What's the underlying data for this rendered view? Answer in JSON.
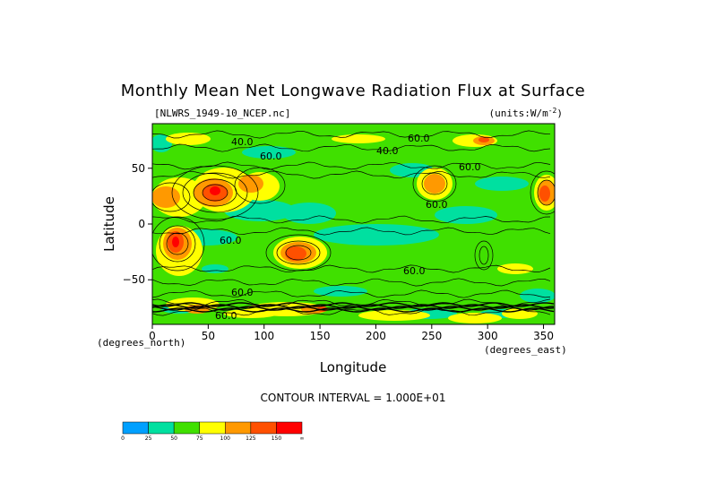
{
  "chart_data": {
    "type": "heatmap",
    "title": "Monthly Mean Net Longwave Radiation Flux at Surface",
    "file_label": "[NLWRS_1949-10_NCEP.nc]",
    "units_label": "(units:W/m^-2)",
    "xlabel": "Longitude",
    "ylabel": "Latitude",
    "x_unit_label": "(degrees_east)",
    "y_unit_label": "(degrees_north)",
    "xlim": [
      0,
      360
    ],
    "ylim": [
      -90,
      90
    ],
    "x_ticks": [
      "0",
      "50",
      "100",
      "150",
      "200",
      "250",
      "300",
      "350"
    ],
    "y_ticks": [
      "50",
      "0",
      "-50"
    ],
    "contour_interval_text": "CONTOUR INTERVAL = 1.000E+01",
    "contour_labels": [
      "40.0",
      "60.0",
      "40.0",
      "60.0",
      "60.0",
      "60.0",
      "60.0",
      "60.0",
      "60.0",
      "60.0"
    ],
    "colorbar": {
      "labels": [
        "0",
        "25",
        "50",
        "75",
        "100",
        "125",
        "150",
        "∞"
      ],
      "colors": [
        "#00a0ff",
        "#00e0a0",
        "#40e000",
        "#ffff00",
        "#ff9900",
        "#ff5000",
        "#ff0000"
      ]
    },
    "grid": false
  }
}
